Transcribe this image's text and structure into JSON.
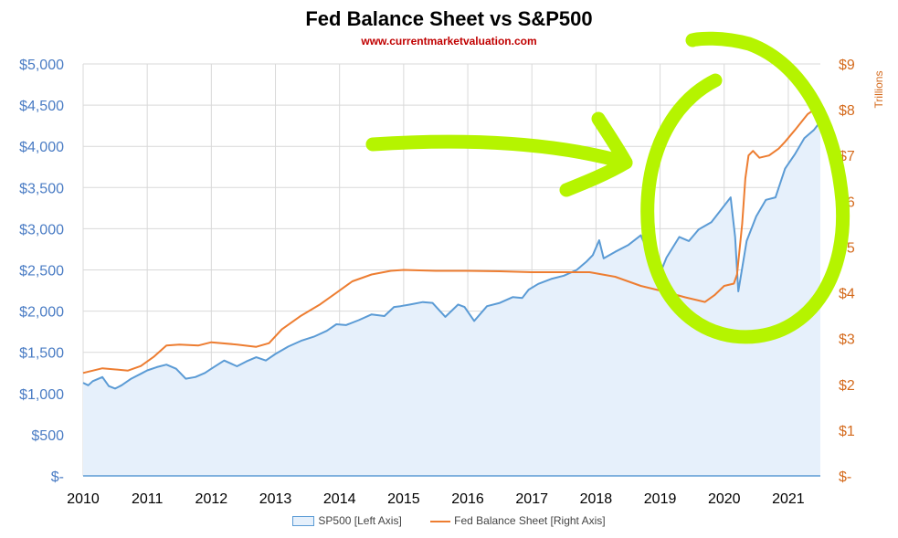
{
  "chart_data": {
    "type": "line",
    "title": "Fed Balance Sheet vs S&P500",
    "subtitle": "www.currentmarketvaluation.com",
    "xlabel": "",
    "x_ticks": [
      "2010",
      "2011",
      "2012",
      "2013",
      "2014",
      "2015",
      "2016",
      "2017",
      "2018",
      "2019",
      "2020",
      "2021"
    ],
    "xlim": [
      2010,
      2021.5
    ],
    "y_left": {
      "label": "",
      "ylim": [
        0,
        5000
      ],
      "ticks": [
        "$-",
        "$500",
        "$1,000",
        "$1,500",
        "$2,000",
        "$2,500",
        "$3,000",
        "$3,500",
        "$4,000",
        "$4,500",
        "$5,000"
      ]
    },
    "y_right": {
      "label": "Trillions",
      "ylim": [
        0,
        9
      ],
      "ticks": [
        "$-",
        "$1",
        "$2",
        "$3",
        "$4",
        "$5",
        "$6",
        "$7",
        "$8",
        "$9"
      ]
    },
    "grid": true,
    "legend_position": "bottom",
    "series": [
      {
        "name": "SP500 [Left Axis]",
        "axis": "left",
        "style": "area",
        "color": "#5b9bd5",
        "fill": "#e6f0fb",
        "points": [
          [
            2010.0,
            1130
          ],
          [
            2010.08,
            1100
          ],
          [
            2010.15,
            1150
          ],
          [
            2010.3,
            1200
          ],
          [
            2010.4,
            1090
          ],
          [
            2010.5,
            1060
          ],
          [
            2010.6,
            1100
          ],
          [
            2010.75,
            1180
          ],
          [
            2010.9,
            1240
          ],
          [
            2011.0,
            1280
          ],
          [
            2011.15,
            1320
          ],
          [
            2011.3,
            1350
          ],
          [
            2011.45,
            1300
          ],
          [
            2011.6,
            1180
          ],
          [
            2011.75,
            1200
          ],
          [
            2011.9,
            1250
          ],
          [
            2012.0,
            1300
          ],
          [
            2012.2,
            1400
          ],
          [
            2012.4,
            1330
          ],
          [
            2012.55,
            1390
          ],
          [
            2012.7,
            1440
          ],
          [
            2012.85,
            1400
          ],
          [
            2013.0,
            1480
          ],
          [
            2013.2,
            1570
          ],
          [
            2013.4,
            1640
          ],
          [
            2013.6,
            1690
          ],
          [
            2013.8,
            1760
          ],
          [
            2013.95,
            1840
          ],
          [
            2014.1,
            1830
          ],
          [
            2014.3,
            1890
          ],
          [
            2014.5,
            1960
          ],
          [
            2014.7,
            1940
          ],
          [
            2014.85,
            2050
          ],
          [
            2014.95,
            2060
          ],
          [
            2015.1,
            2080
          ],
          [
            2015.3,
            2110
          ],
          [
            2015.45,
            2100
          ],
          [
            2015.65,
            1930
          ],
          [
            2015.85,
            2080
          ],
          [
            2015.95,
            2050
          ],
          [
            2016.1,
            1880
          ],
          [
            2016.3,
            2060
          ],
          [
            2016.5,
            2100
          ],
          [
            2016.7,
            2170
          ],
          [
            2016.85,
            2160
          ],
          [
            2016.95,
            2260
          ],
          [
            2017.1,
            2330
          ],
          [
            2017.3,
            2390
          ],
          [
            2017.5,
            2430
          ],
          [
            2017.7,
            2500
          ],
          [
            2017.85,
            2600
          ],
          [
            2017.95,
            2680
          ],
          [
            2018.05,
            2860
          ],
          [
            2018.12,
            2640
          ],
          [
            2018.3,
            2720
          ],
          [
            2018.5,
            2800
          ],
          [
            2018.7,
            2920
          ],
          [
            2018.85,
            2650
          ],
          [
            2018.98,
            2420
          ],
          [
            2019.1,
            2650
          ],
          [
            2019.3,
            2900
          ],
          [
            2019.45,
            2850
          ],
          [
            2019.6,
            2990
          ],
          [
            2019.8,
            3080
          ],
          [
            2019.95,
            3230
          ],
          [
            2020.1,
            3380
          ],
          [
            2020.17,
            2900
          ],
          [
            2020.22,
            2240
          ],
          [
            2020.35,
            2850
          ],
          [
            2020.5,
            3150
          ],
          [
            2020.65,
            3350
          ],
          [
            2020.8,
            3380
          ],
          [
            2020.95,
            3730
          ],
          [
            2021.1,
            3900
          ],
          [
            2021.25,
            4100
          ],
          [
            2021.4,
            4200
          ],
          [
            2021.5,
            4300
          ]
        ]
      },
      {
        "name": "Fed Balance Sheet [Right Axis]",
        "axis": "right",
        "style": "line",
        "color": "#ed7d31",
        "points": [
          [
            2010.0,
            2.25
          ],
          [
            2010.3,
            2.35
          ],
          [
            2010.7,
            2.3
          ],
          [
            2010.9,
            2.4
          ],
          [
            2011.1,
            2.6
          ],
          [
            2011.3,
            2.85
          ],
          [
            2011.5,
            2.87
          ],
          [
            2011.8,
            2.85
          ],
          [
            2012.0,
            2.92
          ],
          [
            2012.4,
            2.87
          ],
          [
            2012.7,
            2.82
          ],
          [
            2012.9,
            2.9
          ],
          [
            2013.1,
            3.2
          ],
          [
            2013.4,
            3.5
          ],
          [
            2013.7,
            3.75
          ],
          [
            2013.95,
            4.0
          ],
          [
            2014.2,
            4.25
          ],
          [
            2014.5,
            4.4
          ],
          [
            2014.8,
            4.48
          ],
          [
            2015.0,
            4.5
          ],
          [
            2015.5,
            4.48
          ],
          [
            2016.0,
            4.48
          ],
          [
            2016.5,
            4.47
          ],
          [
            2017.0,
            4.45
          ],
          [
            2017.5,
            4.45
          ],
          [
            2017.9,
            4.45
          ],
          [
            2018.3,
            4.35
          ],
          [
            2018.7,
            4.15
          ],
          [
            2019.0,
            4.05
          ],
          [
            2019.4,
            3.9
          ],
          [
            2019.7,
            3.8
          ],
          [
            2019.85,
            3.95
          ],
          [
            2020.0,
            4.15
          ],
          [
            2020.15,
            4.2
          ],
          [
            2020.2,
            4.4
          ],
          [
            2020.28,
            5.5
          ],
          [
            2020.33,
            6.5
          ],
          [
            2020.38,
            7.0
          ],
          [
            2020.45,
            7.1
          ],
          [
            2020.55,
            6.95
          ],
          [
            2020.7,
            7.0
          ],
          [
            2020.85,
            7.15
          ],
          [
            2020.95,
            7.3
          ],
          [
            2021.1,
            7.55
          ],
          [
            2021.3,
            7.9
          ],
          [
            2021.45,
            8.05
          ],
          [
            2021.5,
            8.1
          ]
        ]
      }
    ],
    "annotations": [
      {
        "type": "arrow",
        "color": "#b5f400"
      },
      {
        "type": "circle",
        "color": "#b5f400"
      }
    ]
  }
}
